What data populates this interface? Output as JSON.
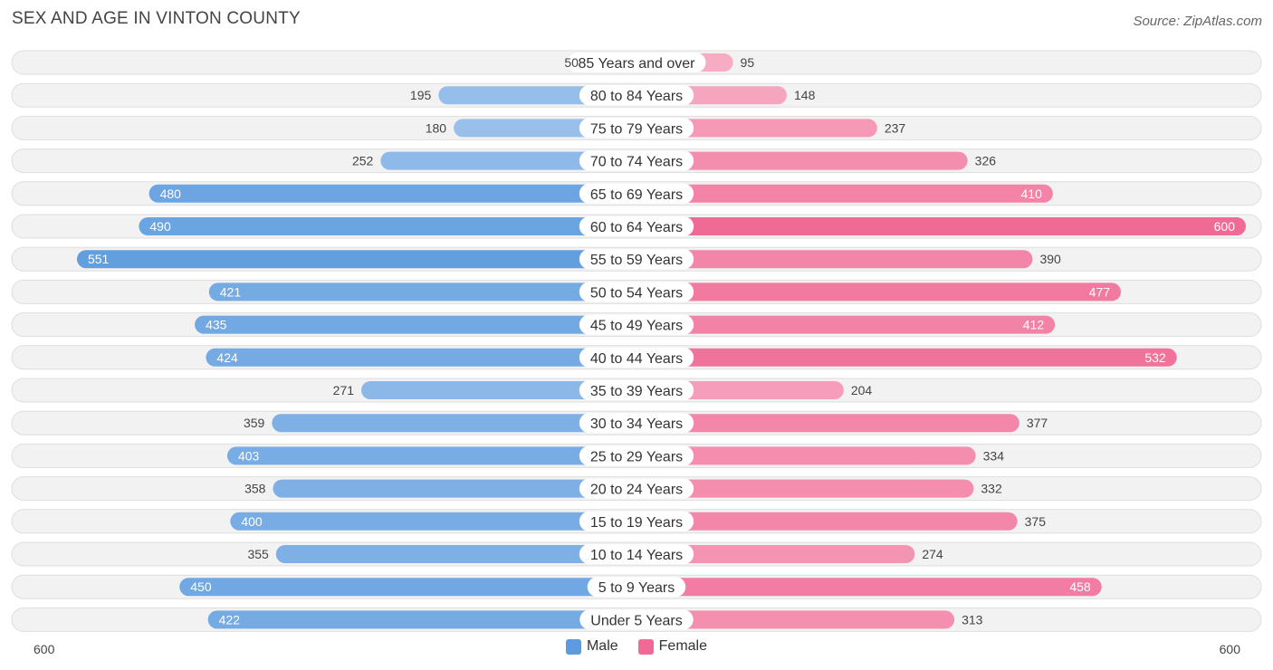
{
  "title": "SEX AND AGE IN VINTON COUNTY",
  "source": "Source: ZipAtlas.com",
  "colors": {
    "male_light": "#b3cff0",
    "male_dark": "#5b9bde",
    "female_light": "#f8b8cc",
    "female_dark": "#f06a96",
    "row_bg": "#f2f2f2"
  },
  "chart_data": {
    "type": "bar",
    "orientation": "horizontal-diverging",
    "categories": [
      "85 Years and over",
      "80 to 84 Years",
      "75 to 79 Years",
      "70 to 74 Years",
      "65 to 69 Years",
      "60 to 64 Years",
      "55 to 59 Years",
      "50 to 54 Years",
      "45 to 49 Years",
      "40 to 44 Years",
      "35 to 39 Years",
      "30 to 34 Years",
      "25 to 29 Years",
      "20 to 24 Years",
      "15 to 19 Years",
      "10 to 14 Years",
      "5 to 9 Years",
      "Under 5 Years"
    ],
    "series": [
      {
        "name": "Male",
        "values": [
          50,
          195,
          180,
          252,
          480,
          490,
          551,
          421,
          435,
          424,
          271,
          359,
          403,
          358,
          400,
          355,
          450,
          422
        ]
      },
      {
        "name": "Female",
        "values": [
          95,
          148,
          237,
          326,
          410,
          600,
          390,
          477,
          412,
          532,
          204,
          377,
          334,
          332,
          375,
          274,
          458,
          313
        ]
      }
    ],
    "axis_left_label": "600",
    "axis_right_label": "600",
    "xlim": [
      0,
      600
    ],
    "legend_position": "bottom-center"
  }
}
